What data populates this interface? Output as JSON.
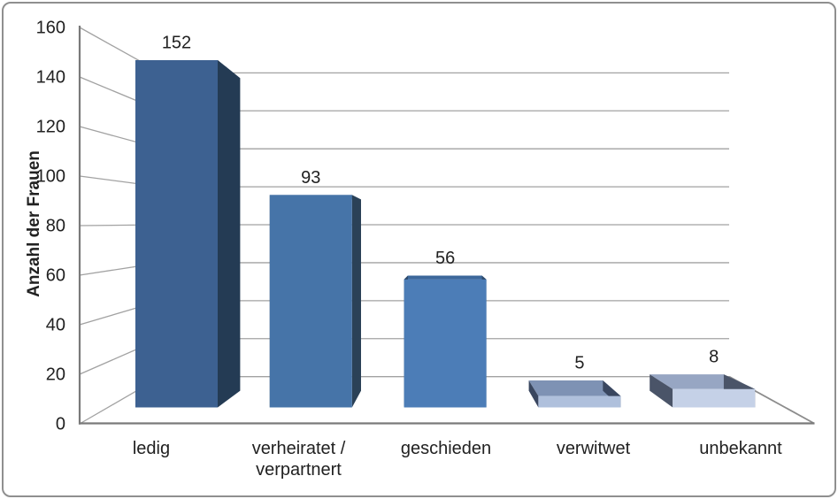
{
  "chart_data": {
    "type": "bar",
    "variant": "3d-column-perspective",
    "title": "",
    "ylabel": "Anzahl der Frauen",
    "xlabel": "",
    "categories": [
      "ledig",
      "verheiratet / verpartnert",
      "geschieden",
      "verwitwet",
      "unbekannt"
    ],
    "category_lines": [
      [
        "ledig"
      ],
      [
        "verheiratet /",
        "verpartnert"
      ],
      [
        "geschieden"
      ],
      [
        "verwitwet"
      ],
      [
        "unbekannt"
      ]
    ],
    "values": [
      152,
      93,
      56,
      5,
      8
    ],
    "data_labels": [
      "152",
      "93",
      "56",
      "5",
      "8"
    ],
    "ylim": [
      0,
      160
    ],
    "yticks": [
      0,
      20,
      40,
      60,
      80,
      100,
      120,
      140,
      160
    ],
    "grid": true,
    "legend": false,
    "bar_colors": [
      {
        "front": "#3D6191",
        "top": "#2F4E77",
        "side": "#243B54"
      },
      {
        "front": "#4674A8",
        "top": "#38608D",
        "side": "#2B4157"
      },
      {
        "front": "#4C7DB7",
        "top": "#3C689B",
        "side": "#2E4A6B"
      },
      {
        "front": "#AFC0DC",
        "top": "#7E92B4",
        "side": "#39465F"
      },
      {
        "front": "#C5D1E7",
        "top": "#97A6C3",
        "side": "#4A5468"
      }
    ],
    "colors": {
      "gridline": "#A2A2A2",
      "axis_line": "#7A7A7A",
      "floor_edge": "#8C8C8C",
      "text": "#212121",
      "background": "#FFFFFF",
      "frame_border": "#8F8F8F"
    }
  }
}
